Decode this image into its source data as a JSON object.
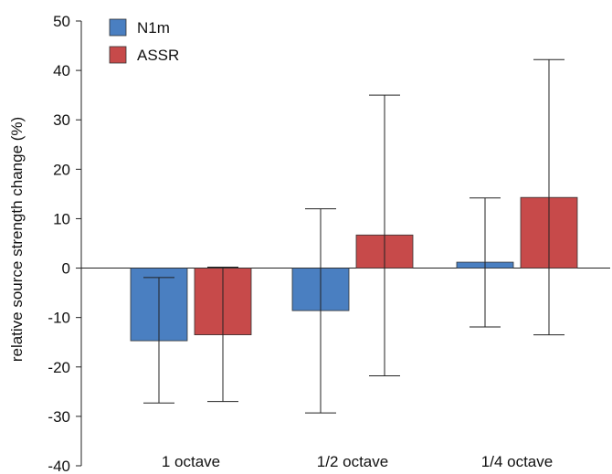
{
  "chart_data": {
    "type": "bar",
    "title": "",
    "xlabel": "",
    "ylabel": "relative source strength change (%)",
    "ylim": [
      -40,
      50
    ],
    "yticks": [
      50,
      40,
      30,
      20,
      10,
      0,
      -10,
      -20,
      -30,
      -40
    ],
    "ytick_labels": [
      "50",
      "40",
      "30",
      "20",
      "10",
      "0",
      "-10",
      "-20",
      "-30",
      "-40"
    ],
    "categories": [
      "1 octave",
      "1/2 octave",
      "1/4 octave"
    ],
    "series": [
      {
        "name": "N1m",
        "color": "#4a7fc1",
        "values": [
          -14.7,
          -8.6,
          1.2
        ],
        "error_low": [
          -27.3,
          -29.3,
          -11.9
        ],
        "error_high": [
          -1.9,
          12.0,
          14.2
        ]
      },
      {
        "name": "ASSR",
        "color": "#c74a4a",
        "values": [
          -13.5,
          6.7,
          14.3
        ],
        "error_low": [
          -27.0,
          -21.8,
          -13.5
        ],
        "error_high": [
          0.2,
          35.0,
          42.2
        ]
      }
    ],
    "grid": false,
    "zero_line": true,
    "legend_position": "top-left"
  }
}
